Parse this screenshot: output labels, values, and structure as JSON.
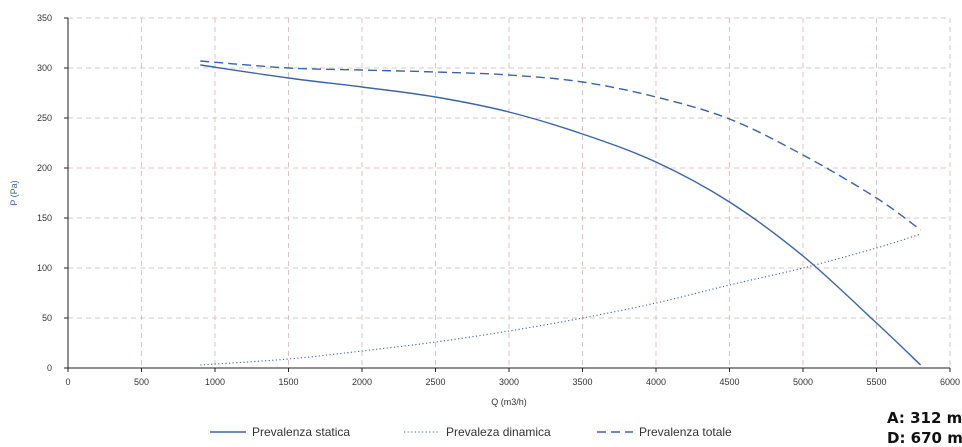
{
  "chart_data": {
    "type": "line",
    "title": "",
    "xlabel": "Q (m3/h)",
    "ylabel": "P (Pa)",
    "xlim": [
      0,
      6000
    ],
    "ylim": [
      0,
      350
    ],
    "x_ticks": [
      0,
      500,
      1000,
      1500,
      2000,
      2500,
      3000,
      3500,
      4000,
      4500,
      5000,
      5500,
      6000
    ],
    "y_ticks": [
      0,
      50,
      100,
      150,
      200,
      250,
      300,
      350
    ],
    "grid": true,
    "legend_position": "bottom",
    "colors": {
      "series": "#3b63a8",
      "ylabel": "#3b63a8",
      "grid": "#d4b4b4",
      "axis": "#222222"
    },
    "series": [
      {
        "name": "Prevalenza statica",
        "style": "solid",
        "points": [
          [
            900,
            303
          ],
          [
            1500,
            290
          ],
          [
            2000,
            281
          ],
          [
            2500,
            271
          ],
          [
            3000,
            256
          ],
          [
            3500,
            234
          ],
          [
            4000,
            206
          ],
          [
            4500,
            166
          ],
          [
            5000,
            112
          ],
          [
            5500,
            45
          ],
          [
            5800,
            3
          ]
        ]
      },
      {
        "name": "Prevaleza dinamica",
        "style": "dotted",
        "points": [
          [
            900,
            3
          ],
          [
            1500,
            9
          ],
          [
            2000,
            17
          ],
          [
            2500,
            26
          ],
          [
            3000,
            37
          ],
          [
            3500,
            50
          ],
          [
            4000,
            65
          ],
          [
            4500,
            83
          ],
          [
            5000,
            100
          ],
          [
            5500,
            120
          ],
          [
            5800,
            134
          ]
        ]
      },
      {
        "name": "Prevalenza totale",
        "style": "dashed",
        "points": [
          [
            900,
            307
          ],
          [
            1500,
            300
          ],
          [
            2000,
            298
          ],
          [
            2500,
            296
          ],
          [
            3000,
            293
          ],
          [
            3500,
            286
          ],
          [
            4000,
            271
          ],
          [
            4500,
            249
          ],
          [
            5000,
            213
          ],
          [
            5500,
            170
          ],
          [
            5800,
            138
          ]
        ]
      }
    ]
  },
  "corner_notes": [
    "A: 312 m",
    "D: 670 m"
  ]
}
